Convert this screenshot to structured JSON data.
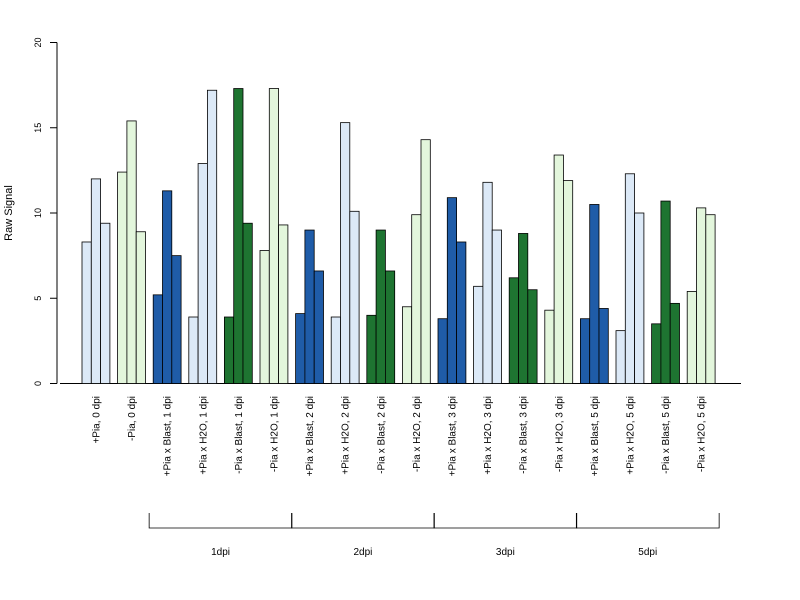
{
  "chart_data": {
    "type": "bar",
    "ylabel": "Raw Signal",
    "ylim": [
      0,
      20
    ],
    "yticks": [
      "0",
      "5",
      "10",
      "15",
      "20"
    ],
    "grid": false,
    "colors": {
      "light_blue": "#dce9f7",
      "light_green": "#e3f6dc",
      "dark_blue": "#1f5ca8",
      "dark_green": "#1e7431"
    },
    "categories": [
      {
        "label": "+Pia, 0 dpi",
        "color": "light_blue",
        "values": [
          8.3,
          12.0,
          9.4
        ]
      },
      {
        "label": "-Pia, 0 dpi",
        "color": "light_green",
        "values": [
          12.4,
          15.4,
          8.9
        ]
      },
      {
        "label": "+Pia x Blast, 1 dpi",
        "color": "dark_blue",
        "values": [
          5.2,
          11.3,
          7.5
        ]
      },
      {
        "label": "+Pia x H2O, 1 dpi",
        "color": "light_blue",
        "values": [
          3.9,
          12.9,
          17.2
        ]
      },
      {
        "label": "-Pia x Blast, 1 dpi",
        "color": "dark_green",
        "values": [
          3.9,
          17.3,
          9.4
        ]
      },
      {
        "label": "-Pia x H2O, 1 dpi",
        "color": "light_green",
        "values": [
          7.8,
          17.3,
          9.3
        ]
      },
      {
        "label": "+Pia x Blast, 2 dpi",
        "color": "dark_blue",
        "values": [
          4.1,
          9.0,
          6.6
        ]
      },
      {
        "label": "+Pia x H2O, 2 dpi",
        "color": "light_blue",
        "values": [
          3.9,
          15.3,
          10.1
        ]
      },
      {
        "label": "-Pia x Blast, 2 dpi",
        "color": "dark_green",
        "values": [
          4.0,
          9.0,
          6.6
        ]
      },
      {
        "label": "-Pia x H2O, 2 dpi",
        "color": "light_green",
        "values": [
          4.5,
          9.9,
          14.3
        ]
      },
      {
        "label": "+Pia x Blast, 3 dpi",
        "color": "dark_blue",
        "values": [
          3.8,
          10.9,
          8.3
        ]
      },
      {
        "label": "+Pia x H2O, 3 dpi",
        "color": "light_blue",
        "values": [
          5.7,
          11.8,
          9.0
        ]
      },
      {
        "label": "-Pia x Blast, 3 dpi",
        "color": "dark_green",
        "values": [
          6.2,
          8.8,
          5.5
        ]
      },
      {
        "label": "-Pia x H2O, 3 dpi",
        "color": "light_green",
        "values": [
          4.3,
          13.4,
          11.9
        ]
      },
      {
        "label": "+Pia x Blast, 5 dpi",
        "color": "dark_blue",
        "values": [
          3.8,
          10.5,
          4.4
        ]
      },
      {
        "label": "+Pia x H2O, 5 dpi",
        "color": "light_blue",
        "values": [
          3.1,
          12.3,
          10.0
        ]
      },
      {
        "label": "-Pia x Blast, 5 dpi",
        "color": "dark_green",
        "values": [
          3.5,
          10.7,
          4.7
        ]
      },
      {
        "label": "-Pia x H2O, 5 dpi",
        "color": "light_green",
        "values": [
          5.4,
          10.3,
          9.9
        ]
      }
    ],
    "groups": [
      {
        "label": "1dpi",
        "categories": [
          2,
          5
        ]
      },
      {
        "label": "2dpi",
        "categories": [
          6,
          9
        ]
      },
      {
        "label": "3dpi",
        "categories": [
          10,
          13
        ]
      },
      {
        "label": "5dpi",
        "categories": [
          14,
          17
        ]
      }
    ]
  }
}
